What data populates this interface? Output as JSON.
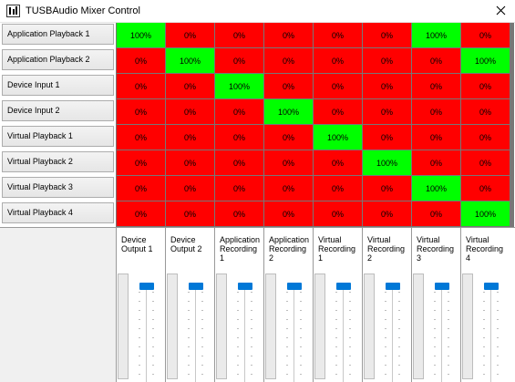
{
  "window": {
    "title": "TUSBAudio Mixer Control"
  },
  "colors": {
    "on": "#00ff00",
    "off": "#ff0000",
    "fader": "#0078d7"
  },
  "inputs": [
    "Application Playback 1",
    "Application Playback 2",
    "Device Input 1",
    "Device Input 2",
    "Virtual Playback 1",
    "Virtual Playback 2",
    "Virtual Playback 3",
    "Virtual Playback 4"
  ],
  "outputs": [
    {
      "label": "Device\nOutput 1",
      "fader_level": 1.0
    },
    {
      "label": "Device\nOutput 2",
      "fader_level": 1.0
    },
    {
      "label": "Application\nRecording\n1",
      "fader_level": 1.0
    },
    {
      "label": "Application\nRecording\n2",
      "fader_level": 1.0
    },
    {
      "label": "Virtual\nRecording\n1",
      "fader_level": 1.0
    },
    {
      "label": "Virtual\nRecording\n2",
      "fader_level": 1.0
    },
    {
      "label": "Virtual\nRecording\n3",
      "fader_level": 1.0
    },
    {
      "label": "Virtual\nRecording\n4",
      "fader_level": 1.0
    }
  ],
  "matrix": [
    [
      "100%",
      "0%",
      "0%",
      "0%",
      "0%",
      "0%",
      "100%",
      "0%"
    ],
    [
      "0%",
      "100%",
      "0%",
      "0%",
      "0%",
      "0%",
      "0%",
      "100%"
    ],
    [
      "0%",
      "0%",
      "100%",
      "0%",
      "0%",
      "0%",
      "0%",
      "0%"
    ],
    [
      "0%",
      "0%",
      "0%",
      "100%",
      "0%",
      "0%",
      "0%",
      "0%"
    ],
    [
      "0%",
      "0%",
      "0%",
      "0%",
      "100%",
      "0%",
      "0%",
      "0%"
    ],
    [
      "0%",
      "0%",
      "0%",
      "0%",
      "0%",
      "100%",
      "0%",
      "0%"
    ],
    [
      "0%",
      "0%",
      "0%",
      "0%",
      "0%",
      "0%",
      "100%",
      "0%"
    ],
    [
      "0%",
      "0%",
      "0%",
      "0%",
      "0%",
      "0%",
      "0%",
      "100%"
    ]
  ]
}
